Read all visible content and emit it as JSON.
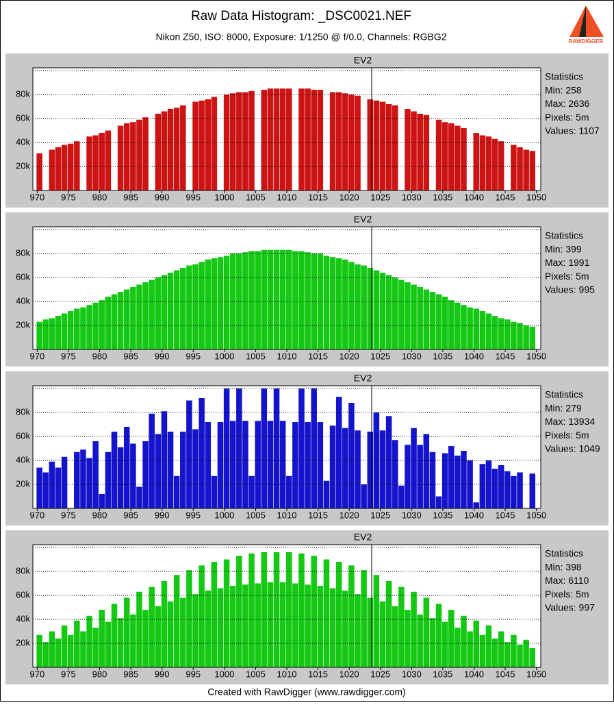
{
  "header": {
    "title": "Raw Data Histogram: _DSC0021.NEF",
    "subtitle": "Nikon Z50, ISO: 8000, Exposure: 1/1250 @ f/0.0, Channels: RGBG2",
    "logo": "RAWDIGGER"
  },
  "footer": "Created with RawDigger (www.rawdigger.com)",
  "chart_data": [
    {
      "type": "bar",
      "title": "EV2",
      "color": "#cc1414",
      "x": [
        970,
        971,
        972,
        973,
        974,
        975,
        976,
        977,
        978,
        979,
        980,
        981,
        982,
        983,
        984,
        985,
        986,
        987,
        988,
        989,
        990,
        991,
        992,
        993,
        994,
        995,
        996,
        997,
        998,
        999,
        1000,
        1001,
        1002,
        1003,
        1004,
        1005,
        1006,
        1007,
        1008,
        1009,
        1010,
        1011,
        1012,
        1013,
        1014,
        1015,
        1016,
        1017,
        1018,
        1019,
        1020,
        1021,
        1022,
        1023,
        1024,
        1025,
        1026,
        1027,
        1028,
        1029,
        1030,
        1031,
        1032,
        1033,
        1034,
        1035,
        1036,
        1037,
        1038,
        1039,
        1040,
        1041,
        1042,
        1043,
        1044,
        1045,
        1046,
        1047,
        1048,
        1049
      ],
      "values": [
        31000,
        0,
        34000,
        36000,
        38000,
        39000,
        41000,
        0,
        45000,
        46000,
        48000,
        50000,
        0,
        54000,
        56000,
        57000,
        59000,
        61000,
        0,
        64000,
        66000,
        68000,
        69000,
        71000,
        0,
        74000,
        75000,
        76000,
        78000,
        0,
        80000,
        81000,
        82000,
        82000,
        83000,
        0,
        84000,
        85000,
        85000,
        85000,
        85000,
        0,
        85000,
        85000,
        84000,
        84000,
        0,
        82000,
        82000,
        81000,
        80000,
        79000,
        0,
        76000,
        75000,
        74000,
        72000,
        71000,
        0,
        68000,
        66000,
        64000,
        63000,
        0,
        59000,
        57000,
        56000,
        54000,
        52000,
        0,
        48000,
        46000,
        45000,
        43000,
        41000,
        0,
        38000,
        36000,
        34000,
        33000
      ],
      "xlim": [
        969.3,
        1050.7
      ],
      "ylim": [
        0,
        100000
      ],
      "xticks": [
        970,
        975,
        980,
        985,
        990,
        995,
        1000,
        1005,
        1010,
        1015,
        1020,
        1025,
        1030,
        1035,
        1040,
        1045,
        1050
      ],
      "yticks": [
        {
          "value": 20000,
          "label": "20k"
        },
        {
          "value": 40000,
          "label": "40k"
        },
        {
          "value": 60000,
          "label": "60k"
        },
        {
          "value": 80000,
          "label": "80k"
        }
      ],
      "grid": true,
      "stats": [
        "Statistics",
        "Min: 258",
        "Max: 2636",
        "Pixels: 5m",
        "Values: 1107"
      ]
    },
    {
      "type": "bar",
      "title": "EV2",
      "color": "#14c814",
      "x": [
        970,
        971,
        972,
        973,
        974,
        975,
        976,
        977,
        978,
        979,
        980,
        981,
        982,
        983,
        984,
        985,
        986,
        987,
        988,
        989,
        990,
        991,
        992,
        993,
        994,
        995,
        996,
        997,
        998,
        999,
        1000,
        1001,
        1002,
        1003,
        1004,
        1005,
        1006,
        1007,
        1008,
        1009,
        1010,
        1011,
        1012,
        1013,
        1014,
        1015,
        1016,
        1017,
        1018,
        1019,
        1020,
        1021,
        1022,
        1023,
        1024,
        1025,
        1026,
        1027,
        1028,
        1029,
        1030,
        1031,
        1032,
        1033,
        1034,
        1035,
        1036,
        1037,
        1038,
        1039,
        1040,
        1041,
        1042,
        1043,
        1044,
        1045,
        1046,
        1047,
        1048,
        1049
      ],
      "values": [
        23000,
        25000,
        26000,
        28000,
        30000,
        32000,
        34000,
        35000,
        37000,
        39000,
        41000,
        44000,
        46000,
        48000,
        50000,
        52000,
        54000,
        56000,
        58000,
        60000,
        62000,
        64000,
        66000,
        68000,
        70000,
        71000,
        73000,
        75000,
        76000,
        77000,
        78000,
        80000,
        80000,
        81000,
        82000,
        82000,
        83000,
        83000,
        83000,
        83000,
        83000,
        82000,
        82000,
        81000,
        80000,
        80000,
        78000,
        77000,
        76000,
        75000,
        73000,
        71000,
        70000,
        68000,
        66000,
        64000,
        62000,
        60000,
        58000,
        56000,
        54000,
        52000,
        50000,
        48000,
        46000,
        44000,
        41000,
        39000,
        37000,
        35000,
        34000,
        32000,
        30000,
        28000,
        26000,
        25000,
        23000,
        22000,
        20000,
        19000
      ],
      "xlim": [
        969.3,
        1050.7
      ],
      "ylim": [
        0,
        100000
      ],
      "xticks": [
        970,
        975,
        980,
        985,
        990,
        995,
        1000,
        1005,
        1010,
        1015,
        1020,
        1025,
        1030,
        1035,
        1040,
        1045,
        1050
      ],
      "yticks": [
        {
          "value": 20000,
          "label": "20k"
        },
        {
          "value": 40000,
          "label": "40k"
        },
        {
          "value": 60000,
          "label": "60k"
        },
        {
          "value": 80000,
          "label": "80k"
        }
      ],
      "grid": true,
      "stats": [
        "Statistics",
        "Min: 399",
        "Max: 1991",
        "Pixels: 5m",
        "Values: 995"
      ]
    },
    {
      "type": "bar",
      "title": "EV2",
      "color": "#1414cc",
      "x": [
        970,
        971,
        972,
        973,
        974,
        975,
        976,
        977,
        978,
        979,
        980,
        981,
        982,
        983,
        984,
        985,
        986,
        987,
        988,
        989,
        990,
        991,
        992,
        993,
        994,
        995,
        996,
        997,
        998,
        999,
        1000,
        1001,
        1002,
        1003,
        1004,
        1005,
        1006,
        1007,
        1008,
        1009,
        1010,
        1011,
        1012,
        1013,
        1014,
        1015,
        1016,
        1017,
        1018,
        1019,
        1020,
        1021,
        1022,
        1023,
        1024,
        1025,
        1026,
        1027,
        1028,
        1029,
        1030,
        1031,
        1032,
        1033,
        1034,
        1035,
        1036,
        1037,
        1038,
        1039,
        1040,
        1041,
        1042,
        1043,
        1044,
        1045,
        1046,
        1047,
        1048,
        1049
      ],
      "values": [
        34000,
        30000,
        39000,
        34000,
        43000,
        0,
        47000,
        49000,
        42000,
        56000,
        12000,
        47000,
        64000,
        51000,
        68000,
        54000,
        18000,
        56000,
        79000,
        62000,
        81000,
        64000,
        27000,
        64000,
        90000,
        66000,
        92000,
        72000,
        27000,
        72000,
        100000,
        73000,
        100000,
        73000,
        27000,
        73000,
        100000,
        73000,
        100000,
        73000,
        27000,
        72000,
        100000,
        72000,
        100000,
        72000,
        23000,
        69000,
        93000,
        67000,
        88000,
        65000,
        20000,
        64000,
        80000,
        65000,
        77000,
        57000,
        19000,
        53000,
        67000,
        53000,
        62000,
        47000,
        10000,
        46000,
        52000,
        44000,
        48000,
        40000,
        5000,
        37000,
        40000,
        33000,
        36000,
        31000,
        27000,
        30000,
        0,
        29000
      ],
      "xlim": [
        969.3,
        1050.7
      ],
      "ylim": [
        0,
        100000
      ],
      "xticks": [
        970,
        975,
        980,
        985,
        990,
        995,
        1000,
        1005,
        1010,
        1015,
        1020,
        1025,
        1030,
        1035,
        1040,
        1045,
        1050
      ],
      "yticks": [
        {
          "value": 20000,
          "label": "20k"
        },
        {
          "value": 40000,
          "label": "40k"
        },
        {
          "value": 60000,
          "label": "60k"
        },
        {
          "value": 80000,
          "label": "80k"
        }
      ],
      "grid": true,
      "stats": [
        "Statistics",
        "Min: 279",
        "Max: 13934",
        "Pixels: 5m",
        "Values: 1049"
      ]
    },
    {
      "type": "bar",
      "title": "EV2",
      "color": "#14c814",
      "x": [
        970,
        971,
        972,
        973,
        974,
        975,
        976,
        977,
        978,
        979,
        980,
        981,
        982,
        983,
        984,
        985,
        986,
        987,
        988,
        989,
        990,
        991,
        992,
        993,
        994,
        995,
        996,
        997,
        998,
        999,
        1000,
        1001,
        1002,
        1003,
        1004,
        1005,
        1006,
        1007,
        1008,
        1009,
        1010,
        1011,
        1012,
        1013,
        1014,
        1015,
        1016,
        1017,
        1018,
        1019,
        1020,
        1021,
        1022,
        1023,
        1024,
        1025,
        1026,
        1027,
        1028,
        1029,
        1030,
        1031,
        1032,
        1033,
        1034,
        1035,
        1036,
        1037,
        1038,
        1039,
        1040,
        1041,
        1042,
        1043,
        1044,
        1045,
        1046,
        1047,
        1048,
        1049
      ],
      "values": [
        27000,
        21000,
        30000,
        24000,
        35000,
        27000,
        39000,
        30000,
        43000,
        33000,
        48000,
        38000,
        53000,
        41000,
        58000,
        44000,
        63000,
        48000,
        67000,
        51000,
        72000,
        55000,
        77000,
        58000,
        81000,
        61000,
        85000,
        64000,
        88000,
        66000,
        90000,
        68000,
        93000,
        69000,
        95000,
        70000,
        96000,
        71000,
        96000,
        71000,
        96000,
        70000,
        95000,
        69000,
        93000,
        68000,
        90000,
        66000,
        88000,
        64000,
        85000,
        61000,
        81000,
        58000,
        77000,
        55000,
        72000,
        51000,
        67000,
        48000,
        63000,
        44000,
        58000,
        41000,
        53000,
        38000,
        48000,
        33000,
        43000,
        30000,
        39000,
        27000,
        35000,
        24000,
        30000,
        21000,
        27000,
        19000,
        23000,
        16000
      ],
      "xlim": [
        969.3,
        1050.7
      ],
      "ylim": [
        0,
        100000
      ],
      "xticks": [
        970,
        975,
        980,
        985,
        990,
        995,
        1000,
        1005,
        1010,
        1015,
        1020,
        1025,
        1030,
        1035,
        1040,
        1045,
        1050
      ],
      "yticks": [
        {
          "value": 20000,
          "label": "20k"
        },
        {
          "value": 40000,
          "label": "40k"
        },
        {
          "value": 60000,
          "label": "60k"
        },
        {
          "value": 80000,
          "label": "80k"
        }
      ],
      "grid": true,
      "stats": [
        "Statistics",
        "Min: 398",
        "Max: 6110",
        "Pixels: 5m",
        "Values: 997"
      ]
    }
  ]
}
